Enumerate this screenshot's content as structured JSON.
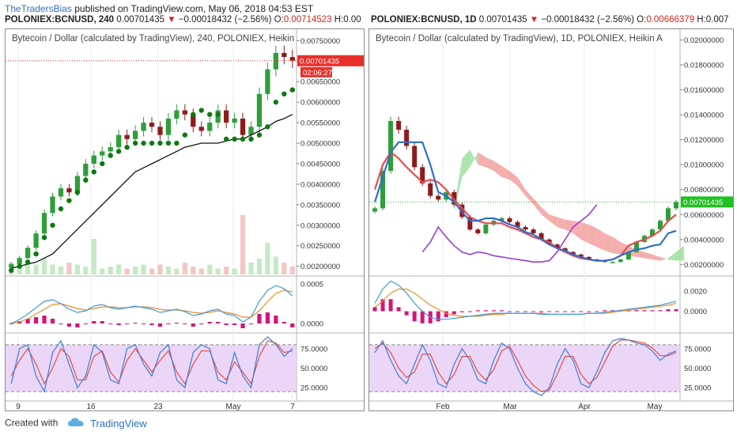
{
  "header": {
    "author": "TheTradersBias",
    "published": "published on TradingView.com, May 06, 2018 04:53 EST",
    "left_symbol": "POLONIEX:BCNUSD, 240",
    "left_price": "0.00701435",
    "left_change": "−0.00018432 (−2.56%)",
    "left_open_label": "O:",
    "left_open": "0.00714523",
    "left_high_label": "H:0.00",
    "right_symbol": "POLONIEX:BCNUSD, 1D",
    "right_price": "0.00701435",
    "right_change": "−0.00018432 (−2.56%)",
    "right_open_label": "O:",
    "right_open": "0.00666379",
    "right_high_label": "H:0.007"
  },
  "colors": {
    "up": "#2e9e3a",
    "down": "#8e1b1b",
    "psar": "#0b7a10",
    "ma": "#111111",
    "macd": "#3a9de0",
    "signal": "#f08a24",
    "hist": "#d4147a",
    "stoch_k": "#3a7fd9",
    "stoch_d": "#e84c3d",
    "stoch_band": "#e6c8f5",
    "tenkan": "#2f6fcc",
    "kijun": "#e94b4b",
    "chikou": "#9a3fd6",
    "cloud_bull": "#9fdf9f",
    "cloud_bear": "#f3a0a0",
    "price_tag": "#e8302b",
    "price_tag_right": "#22c022"
  },
  "chart_data": [
    {
      "type": "candlestick",
      "title": "Bytecoin / Dollar (calculated by TradingView), 240, POLONIEX, Heikin",
      "price_label": "0.00701435",
      "countdown": "02:06:27",
      "ylim": [
        0.0018,
        0.0077
      ],
      "y_ticks": [
        "0.00750000",
        "0.00700000",
        "0.00650000",
        "0.00600000",
        "0.00550000",
        "0.00500000",
        "0.00450000",
        "0.00400000",
        "0.00350000",
        "0.00300000",
        "0.00250000",
        "0.00200000"
      ],
      "x_ticks": [
        "9",
        "16",
        "23",
        "May",
        "7"
      ],
      "close": [
        0.00205,
        0.0022,
        0.00245,
        0.0028,
        0.0033,
        0.0037,
        0.0039,
        0.0038,
        0.0042,
        0.0045,
        0.0047,
        0.0048,
        0.0049,
        0.0052,
        0.0051,
        0.0053,
        0.0055,
        0.0054,
        0.0052,
        0.0056,
        0.0058,
        0.0057,
        0.0054,
        0.0053,
        0.0055,
        0.0058,
        0.0055,
        0.0056,
        0.0052,
        0.0054,
        0.0062,
        0.0068,
        0.0072,
        0.0071,
        0.00701
      ],
      "psar": [
        0.0019,
        0.002,
        0.0021,
        0.0023,
        0.0027,
        0.003,
        0.0034,
        0.0036,
        0.0038,
        0.0041,
        0.0043,
        0.0045,
        0.0047,
        0.0048,
        0.0049,
        0.005,
        0.005,
        0.005,
        0.005,
        0.005,
        0.005,
        0.0052,
        0.0057,
        0.0058,
        0.0057,
        0.0057,
        0.0051,
        0.0051,
        0.0051,
        0.0051,
        0.0052,
        0.0054,
        0.006,
        0.0062,
        0.0063
      ],
      "ma": [
        0.00195,
        0.002,
        0.00205,
        0.0021,
        0.0022,
        0.0023,
        0.0025,
        0.0027,
        0.0029,
        0.0031,
        0.0033,
        0.0035,
        0.0037,
        0.0039,
        0.0041,
        0.0043,
        0.0044,
        0.0045,
        0.0046,
        0.0047,
        0.0048,
        0.0049,
        0.00495,
        0.005,
        0.005,
        0.005,
        0.00505,
        0.0051,
        0.0051,
        0.0052,
        0.0053,
        0.0054,
        0.00553,
        0.0056,
        0.0057
      ],
      "volume": [
        0.6,
        0.4,
        0.7,
        0.5,
        0.8,
        0.5,
        0.4,
        0.6,
        0.5,
        0.4,
        1.8,
        0.3,
        0.4,
        0.5,
        0.3,
        0.4,
        0.5,
        0.3,
        0.5,
        0.4,
        0.3,
        0.6,
        0.4,
        0.3,
        0.5,
        0.3,
        0.4,
        0.3,
        3.0,
        0.6,
        0.8,
        1.6,
        0.9,
        0.6,
        0.4
      ],
      "macd": {
        "y_ticks": [
          "0.0005",
          "0.0000"
        ],
        "ylim": [
          -0.0001,
          0.0006
        ],
        "macd": [
          0.0,
          5e-05,
          0.00012,
          0.0002,
          0.00028,
          0.0003,
          0.00025,
          0.00018,
          0.00014,
          0.00016,
          0.00022,
          0.00024,
          0.0002,
          0.00018,
          0.0002,
          0.00022,
          0.0002,
          0.00018,
          0.00014,
          0.00016,
          0.00018,
          0.00015,
          0.0001,
          0.00012,
          0.00016,
          0.00018,
          0.00012,
          0.0001,
          2e-05,
          8e-05,
          0.00028,
          0.00042,
          0.00048,
          0.00044,
          0.00035
        ],
        "signal": [
          0.0,
          2e-05,
          6e-05,
          0.00012,
          0.00018,
          0.00024,
          0.00025,
          0.00022,
          0.00019,
          0.00017,
          0.00019,
          0.00021,
          0.00021,
          0.0002,
          0.0002,
          0.00021,
          0.00021,
          0.0002,
          0.00018,
          0.00017,
          0.00017,
          0.00016,
          0.00014,
          0.00013,
          0.00014,
          0.00016,
          0.00014,
          0.00012,
          8e-05,
          8e-05,
          0.00016,
          0.00028,
          0.00038,
          0.00042,
          0.0004
        ],
        "hist": [
          0.0,
          3e-05,
          6e-05,
          8e-05,
          0.0001,
          6e-05,
          0.0,
          -4e-05,
          -5e-05,
          -1e-05,
          3e-05,
          3e-05,
          -1e-05,
          -2e-05,
          0.0,
          1e-05,
          -1e-05,
          -2e-05,
          -4e-05,
          -1e-05,
          1e-05,
          -1e-05,
          -4e-05,
          -1e-05,
          2e-05,
          2e-05,
          -2e-05,
          -2e-05,
          -6e-05,
          0.0,
          0.00012,
          0.00014,
          0.0001,
          2e-05,
          -5e-05
        ]
      },
      "stoch": {
        "y_ticks": [
          "75.0000",
          "50.0000",
          "25.0000"
        ],
        "ylim": [
          10,
          95
        ],
        "bands": [
          20,
          80
        ],
        "k": [
          30,
          75,
          80,
          40,
          20,
          70,
          85,
          55,
          25,
          40,
          80,
          70,
          35,
          30,
          75,
          80,
          55,
          40,
          70,
          80,
          35,
          25,
          70,
          80,
          75,
          35,
          30,
          70,
          40,
          25,
          80,
          90,
          80,
          65,
          75
        ],
        "d": [
          40,
          60,
          75,
          55,
          30,
          50,
          75,
          65,
          35,
          35,
          65,
          72,
          45,
          32,
          60,
          75,
          60,
          45,
          60,
          72,
          45,
          30,
          55,
          72,
          72,
          45,
          35,
          58,
          45,
          30,
          65,
          85,
          82,
          70,
          72
        ]
      }
    },
    {
      "type": "candlestick",
      "title": "Bytecoin / Dollar (calculated by TradingView), 1D, POLONIEX, Heikin A",
      "price_label": "0.00701435",
      "ylim": [
        0.0012,
        0.0206
      ],
      "y_ticks": [
        "0.02000000",
        "0.01800000",
        "0.01600000",
        "0.01400000",
        "0.01200000",
        "0.01000000",
        "0.00800000",
        "0.00600000",
        "0.00400000",
        "0.00200000"
      ],
      "x_ticks": [
        "Feb",
        "Mar",
        "Apr",
        "May"
      ],
      "close": [
        0.0065,
        0.0095,
        0.0135,
        0.0128,
        0.0115,
        0.0098,
        0.0085,
        0.0075,
        0.0072,
        0.0078,
        0.0068,
        0.0058,
        0.0048,
        0.0045,
        0.0052,
        0.0055,
        0.0057,
        0.0054,
        0.005,
        0.0048,
        0.0045,
        0.004,
        0.0036,
        0.0033,
        0.003,
        0.0028,
        0.0026,
        0.0024,
        0.0023,
        0.0022,
        0.0022,
        0.0024,
        0.003,
        0.0038,
        0.0043,
        0.0048,
        0.0055,
        0.0065,
        0.00701
      ],
      "tenkan": [
        0.007,
        0.009,
        0.011,
        0.0118,
        0.0118,
        0.0118,
        0.0118,
        0.01,
        0.0078,
        0.0075,
        0.007,
        0.0062,
        0.0055,
        0.0055,
        0.0057,
        0.0057,
        0.0055,
        0.0052,
        0.005,
        0.0046,
        0.0044,
        0.004,
        0.0036,
        0.0033,
        0.0031,
        0.0028,
        0.0026,
        0.0024,
        0.0023,
        0.0023,
        0.0024,
        0.0027,
        0.003,
        0.0032,
        0.0033,
        0.0035,
        0.0036,
        0.0045,
        0.0047
      ],
      "kijun": [
        0.008,
        0.01,
        0.011,
        0.0105,
        0.0098,
        0.0092,
        0.0086,
        0.0088,
        0.0086,
        0.008,
        0.0072,
        0.0065,
        0.0058,
        0.0055,
        0.0053,
        0.0053,
        0.0053,
        0.005,
        0.0048,
        0.0045,
        0.0042,
        0.004,
        0.0038,
        0.0033,
        0.003,
        0.0027,
        0.0025,
        0.0024,
        0.0023,
        0.0023,
        0.0024,
        0.0027,
        0.0035,
        0.0038,
        0.004,
        0.0043,
        0.0047,
        0.0055,
        0.006
      ],
      "chikou": [
        0.003,
        0.0038,
        0.005,
        0.0042,
        0.0035,
        0.003,
        0.0028,
        0.003,
        0.0029,
        0.0027,
        0.0026,
        0.0025,
        0.0024,
        0.0023,
        0.0022,
        0.0022,
        0.0023,
        0.003,
        0.004,
        0.005,
        0.0055,
        0.006,
        0.0068
      ],
      "cloud": {
        "start": 10,
        "a": [
          0.0065,
          0.0105,
          0.0112,
          0.01,
          0.0098,
          0.0095,
          0.009,
          0.0088,
          0.0083,
          0.0075,
          0.0068,
          0.006,
          0.0055,
          0.005,
          0.0048,
          0.0045,
          0.004,
          0.0037,
          0.0034,
          0.0031,
          0.0029,
          0.0028,
          0.0027,
          0.0026,
          0.0025,
          0.0024,
          0.0023,
          0.0025,
          0.003,
          0.0035
        ],
        "b": [
          0.0062,
          0.009,
          0.0098,
          0.011,
          0.0106,
          0.0103,
          0.0099,
          0.0095,
          0.009,
          0.008,
          0.0073,
          0.0066,
          0.006,
          0.0058,
          0.0056,
          0.0055,
          0.0054,
          0.0052,
          0.0049,
          0.0045,
          0.0042,
          0.0038,
          0.0035,
          0.0032,
          0.003,
          0.0028,
          0.0026,
          0.0024,
          0.0023,
          0.0023
        ]
      },
      "macd": {
        "y_ticks": [
          "0.0020",
          "0.0000"
        ],
        "ylim": [
          -0.002,
          0.0035
        ],
        "macd": [
          0.0008,
          0.0022,
          0.003,
          0.0026,
          0.0018,
          0.0008,
          0.0,
          -0.0006,
          -0.0008,
          -0.0008,
          -0.0007,
          -0.0006,
          -0.0005,
          -0.0004,
          -0.0003,
          -0.0002,
          -0.0002,
          -0.0002,
          -0.0002,
          -0.0002,
          -0.0002,
          -0.0003,
          -0.0003,
          -0.0003,
          -0.0003,
          -0.0003,
          -0.0003,
          -0.0002,
          -0.0002,
          -0.0001,
          0.0,
          0.0001,
          0.0002,
          0.0003,
          0.0004,
          0.0005,
          0.0006,
          0.0008,
          0.001
        ],
        "signal": [
          0.0004,
          0.001,
          0.0018,
          0.0022,
          0.0022,
          0.0018,
          0.0012,
          0.0006,
          0.0002,
          -0.0002,
          -0.0004,
          -0.0005,
          -0.0005,
          -0.0005,
          -0.0004,
          -0.0003,
          -0.0003,
          -0.0002,
          -0.0002,
          -0.0002,
          -0.0002,
          -0.0002,
          -0.0003,
          -0.0003,
          -0.0003,
          -0.0003,
          -0.0003,
          -0.0002,
          -0.0002,
          -0.0002,
          -0.0001,
          0.0,
          0.0001,
          0.0002,
          0.0003,
          0.0004,
          0.0005,
          0.0006,
          0.0008
        ],
        "hist": [
          0.0004,
          0.0012,
          0.0012,
          0.0004,
          -0.0004,
          -0.001,
          -0.0012,
          -0.0012,
          -0.001,
          -0.0006,
          -0.0003,
          -0.0001,
          0.0,
          0.0001,
          0.0001,
          0.0001,
          0.0001,
          0.0,
          0.0,
          0.0,
          0.0,
          -0.0001,
          0.0,
          0.0,
          0.0,
          0.0,
          0.0,
          0.0,
          0.0,
          0.0001,
          0.0001,
          0.0001,
          0.0001,
          0.0001,
          0.0001,
          0.0001,
          0.0001,
          0.0002,
          0.0002
        ]
      },
      "stoch": {
        "y_ticks": [
          "75.0000",
          "50.0000",
          "25.0000"
        ],
        "ylim": [
          10,
          95
        ],
        "bands": [
          20,
          80
        ],
        "k": [
          70,
          85,
          60,
          40,
          30,
          55,
          80,
          60,
          30,
          25,
          55,
          75,
          60,
          35,
          30,
          60,
          82,
          75,
          50,
          30,
          20,
          15,
          25,
          55,
          75,
          60,
          30,
          25,
          45,
          70,
          85,
          88,
          86,
          82,
          80,
          72,
          60,
          68,
          72
        ],
        "d": [
          75,
          82,
          70,
          50,
          38,
          45,
          68,
          68,
          45,
          30,
          42,
          65,
          65,
          45,
          35,
          48,
          72,
          78,
          60,
          40,
          28,
          20,
          22,
          42,
          65,
          65,
          42,
          30,
          38,
          58,
          78,
          86,
          86,
          84,
          82,
          76,
          66,
          66,
          70
        ]
      }
    }
  ],
  "footer": {
    "created_with": "Created with",
    "brand": "TradingView"
  }
}
